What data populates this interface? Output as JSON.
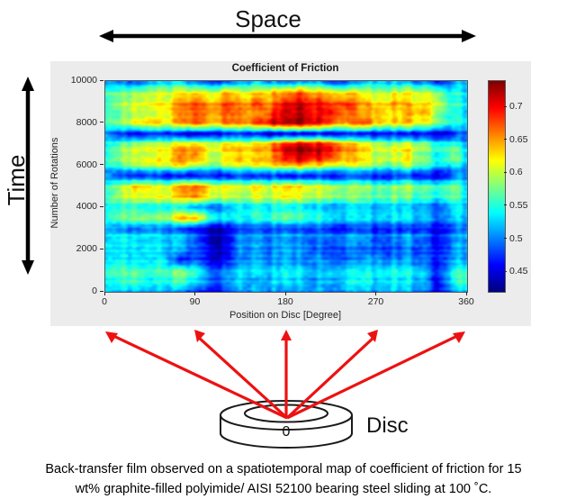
{
  "annotations": {
    "space_label": "Space",
    "time_label": "Time",
    "disc_label": "Disc",
    "disc_zero_label": "0"
  },
  "caption": {
    "line1": "Back-transfer film observed on a spatiotemporal map of coefficient of friction for 15",
    "line2": "wt% graphite-filled polyimide/ AISI 52100 bearing steel sliding at 100 ˚C."
  },
  "colors": {
    "arrow_red": "#ed1111",
    "annotation_black": "#000000",
    "panel_bg": "#ececec",
    "axis_text": "#262626"
  },
  "chart_data": {
    "type": "heatmap",
    "title": "Coefficient of Friction",
    "xlabel": "Position on Disc [Degree]",
    "ylabel": "Number of Rotations",
    "xlim": [
      0,
      360
    ],
    "ylim": [
      0,
      10000
    ],
    "x_ticks": [
      0,
      90,
      180,
      270,
      360
    ],
    "y_ticks": [
      0,
      2000,
      4000,
      6000,
      8000,
      10000
    ],
    "colormap": "jet",
    "colorbar": {
      "min": 0.42,
      "max": 0.74,
      "ticks": [
        0.45,
        0.5,
        0.55,
        0.6,
        0.65,
        0.7
      ]
    },
    "grid": {
      "degrees": [
        0,
        15,
        30,
        45,
        60,
        75,
        90,
        105,
        120,
        135,
        150,
        165,
        180,
        195,
        210,
        225,
        240,
        255,
        270,
        285,
        300,
        315,
        330,
        345,
        360
      ],
      "rotations": [
        10000,
        9500,
        9000,
        8500,
        8000,
        7500,
        7000,
        6500,
        6000,
        5500,
        5000,
        4500,
        4000,
        3500,
        3000,
        2500,
        2000,
        1500,
        1000,
        500,
        0
      ],
      "values": [
        [
          0.5,
          0.49,
          0.47,
          0.5,
          0.52,
          0.52,
          0.49,
          0.47,
          0.47,
          0.5,
          0.52,
          0.5,
          0.48,
          0.5,
          0.51,
          0.48,
          0.47,
          0.5,
          0.52,
          0.52,
          0.5,
          0.49,
          0.46,
          0.5,
          0.51
        ],
        [
          0.54,
          0.57,
          0.58,
          0.59,
          0.6,
          0.61,
          0.62,
          0.6,
          0.63,
          0.6,
          0.62,
          0.63,
          0.64,
          0.66,
          0.64,
          0.63,
          0.62,
          0.6,
          0.59,
          0.6,
          0.61,
          0.6,
          0.58,
          0.55,
          0.52
        ],
        [
          0.55,
          0.59,
          0.6,
          0.61,
          0.62,
          0.66,
          0.68,
          0.64,
          0.67,
          0.65,
          0.68,
          0.66,
          0.7,
          0.71,
          0.7,
          0.68,
          0.69,
          0.64,
          0.63,
          0.65,
          0.64,
          0.62,
          0.61,
          0.56,
          0.53
        ],
        [
          0.55,
          0.58,
          0.61,
          0.6,
          0.63,
          0.67,
          0.69,
          0.66,
          0.68,
          0.67,
          0.66,
          0.69,
          0.72,
          0.73,
          0.71,
          0.72,
          0.68,
          0.65,
          0.66,
          0.64,
          0.65,
          0.66,
          0.6,
          0.57,
          0.53
        ],
        [
          0.54,
          0.58,
          0.6,
          0.62,
          0.61,
          0.64,
          0.67,
          0.63,
          0.65,
          0.64,
          0.67,
          0.7,
          0.71,
          0.72,
          0.7,
          0.67,
          0.64,
          0.66,
          0.63,
          0.62,
          0.63,
          0.6,
          0.58,
          0.55,
          0.52
        ],
        [
          0.5,
          0.47,
          0.45,
          0.46,
          0.47,
          0.45,
          0.44,
          0.46,
          0.45,
          0.47,
          0.46,
          0.44,
          0.45,
          0.44,
          0.46,
          0.45,
          0.47,
          0.45,
          0.46,
          0.47,
          0.45,
          0.46,
          0.44,
          0.47,
          0.49
        ],
        [
          0.53,
          0.57,
          0.59,
          0.6,
          0.61,
          0.63,
          0.64,
          0.61,
          0.63,
          0.62,
          0.64,
          0.66,
          0.7,
          0.72,
          0.71,
          0.7,
          0.66,
          0.62,
          0.61,
          0.6,
          0.61,
          0.59,
          0.55,
          0.56,
          0.52
        ],
        [
          0.54,
          0.58,
          0.6,
          0.6,
          0.62,
          0.66,
          0.67,
          0.6,
          0.62,
          0.64,
          0.63,
          0.65,
          0.71,
          0.73,
          0.72,
          0.7,
          0.65,
          0.62,
          0.6,
          0.61,
          0.62,
          0.58,
          0.54,
          0.59,
          0.53
        ],
        [
          0.53,
          0.57,
          0.59,
          0.6,
          0.61,
          0.63,
          0.6,
          0.58,
          0.6,
          0.61,
          0.62,
          0.63,
          0.64,
          0.65,
          0.63,
          0.62,
          0.61,
          0.6,
          0.59,
          0.58,
          0.6,
          0.57,
          0.53,
          0.55,
          0.52
        ],
        [
          0.49,
          0.46,
          0.45,
          0.46,
          0.45,
          0.44,
          0.45,
          0.46,
          0.44,
          0.46,
          0.45,
          0.46,
          0.44,
          0.45,
          0.46,
          0.45,
          0.47,
          0.46,
          0.45,
          0.46,
          0.47,
          0.45,
          0.44,
          0.48,
          0.5
        ],
        [
          0.55,
          0.6,
          0.64,
          0.62,
          0.61,
          0.66,
          0.68,
          0.63,
          0.62,
          0.61,
          0.63,
          0.62,
          0.64,
          0.63,
          0.62,
          0.61,
          0.6,
          0.59,
          0.58,
          0.59,
          0.6,
          0.58,
          0.56,
          0.6,
          0.54
        ],
        [
          0.54,
          0.59,
          0.61,
          0.6,
          0.62,
          0.64,
          0.66,
          0.61,
          0.6,
          0.59,
          0.61,
          0.6,
          0.62,
          0.61,
          0.6,
          0.59,
          0.58,
          0.57,
          0.57,
          0.58,
          0.57,
          0.56,
          0.54,
          0.58,
          0.53
        ],
        [
          0.52,
          0.54,
          0.53,
          0.52,
          0.53,
          0.52,
          0.5,
          0.48,
          0.49,
          0.52,
          0.53,
          0.52,
          0.53,
          0.52,
          0.51,
          0.5,
          0.52,
          0.51,
          0.5,
          0.52,
          0.51,
          0.5,
          0.47,
          0.52,
          0.51
        ],
        [
          0.54,
          0.58,
          0.59,
          0.58,
          0.6,
          0.65,
          0.66,
          0.57,
          0.54,
          0.55,
          0.56,
          0.57,
          0.58,
          0.57,
          0.56,
          0.55,
          0.54,
          0.53,
          0.54,
          0.55,
          0.54,
          0.53,
          0.5,
          0.54,
          0.52
        ],
        [
          0.51,
          0.5,
          0.49,
          0.5,
          0.49,
          0.48,
          0.47,
          0.44,
          0.44,
          0.48,
          0.49,
          0.48,
          0.49,
          0.48,
          0.49,
          0.48,
          0.47,
          0.48,
          0.47,
          0.48,
          0.47,
          0.48,
          0.45,
          0.49,
          0.5
        ],
        [
          0.52,
          0.55,
          0.54,
          0.53,
          0.54,
          0.53,
          0.5,
          0.44,
          0.45,
          0.51,
          0.52,
          0.51,
          0.52,
          0.51,
          0.5,
          0.51,
          0.52,
          0.51,
          0.5,
          0.51,
          0.52,
          0.5,
          0.46,
          0.51,
          0.52
        ],
        [
          0.52,
          0.53,
          0.52,
          0.53,
          0.52,
          0.51,
          0.49,
          0.45,
          0.44,
          0.5,
          0.51,
          0.5,
          0.51,
          0.5,
          0.49,
          0.48,
          0.49,
          0.48,
          0.49,
          0.48,
          0.49,
          0.48,
          0.46,
          0.5,
          0.51
        ],
        [
          0.53,
          0.55,
          0.54,
          0.53,
          0.54,
          0.46,
          0.5,
          0.46,
          0.46,
          0.51,
          0.52,
          0.51,
          0.52,
          0.51,
          0.52,
          0.51,
          0.5,
          0.51,
          0.52,
          0.51,
          0.52,
          0.5,
          0.47,
          0.52,
          0.52
        ],
        [
          0.53,
          0.56,
          0.55,
          0.54,
          0.56,
          0.57,
          0.55,
          0.48,
          0.49,
          0.52,
          0.53,
          0.52,
          0.53,
          0.52,
          0.51,
          0.52,
          0.53,
          0.52,
          0.53,
          0.54,
          0.53,
          0.52,
          0.46,
          0.53,
          0.55
        ],
        [
          0.52,
          0.55,
          0.56,
          0.53,
          0.55,
          0.56,
          0.54,
          0.49,
          0.5,
          0.52,
          0.51,
          0.52,
          0.53,
          0.52,
          0.51,
          0.52,
          0.53,
          0.54,
          0.53,
          0.54,
          0.53,
          0.52,
          0.45,
          0.54,
          0.56
        ],
        [
          0.51,
          0.52,
          0.51,
          0.5,
          0.51,
          0.5,
          0.47,
          0.45,
          0.46,
          0.5,
          0.51,
          0.5,
          0.49,
          0.5,
          0.51,
          0.5,
          0.51,
          0.5,
          0.51,
          0.52,
          0.51,
          0.5,
          0.44,
          0.5,
          0.52
        ]
      ]
    }
  }
}
